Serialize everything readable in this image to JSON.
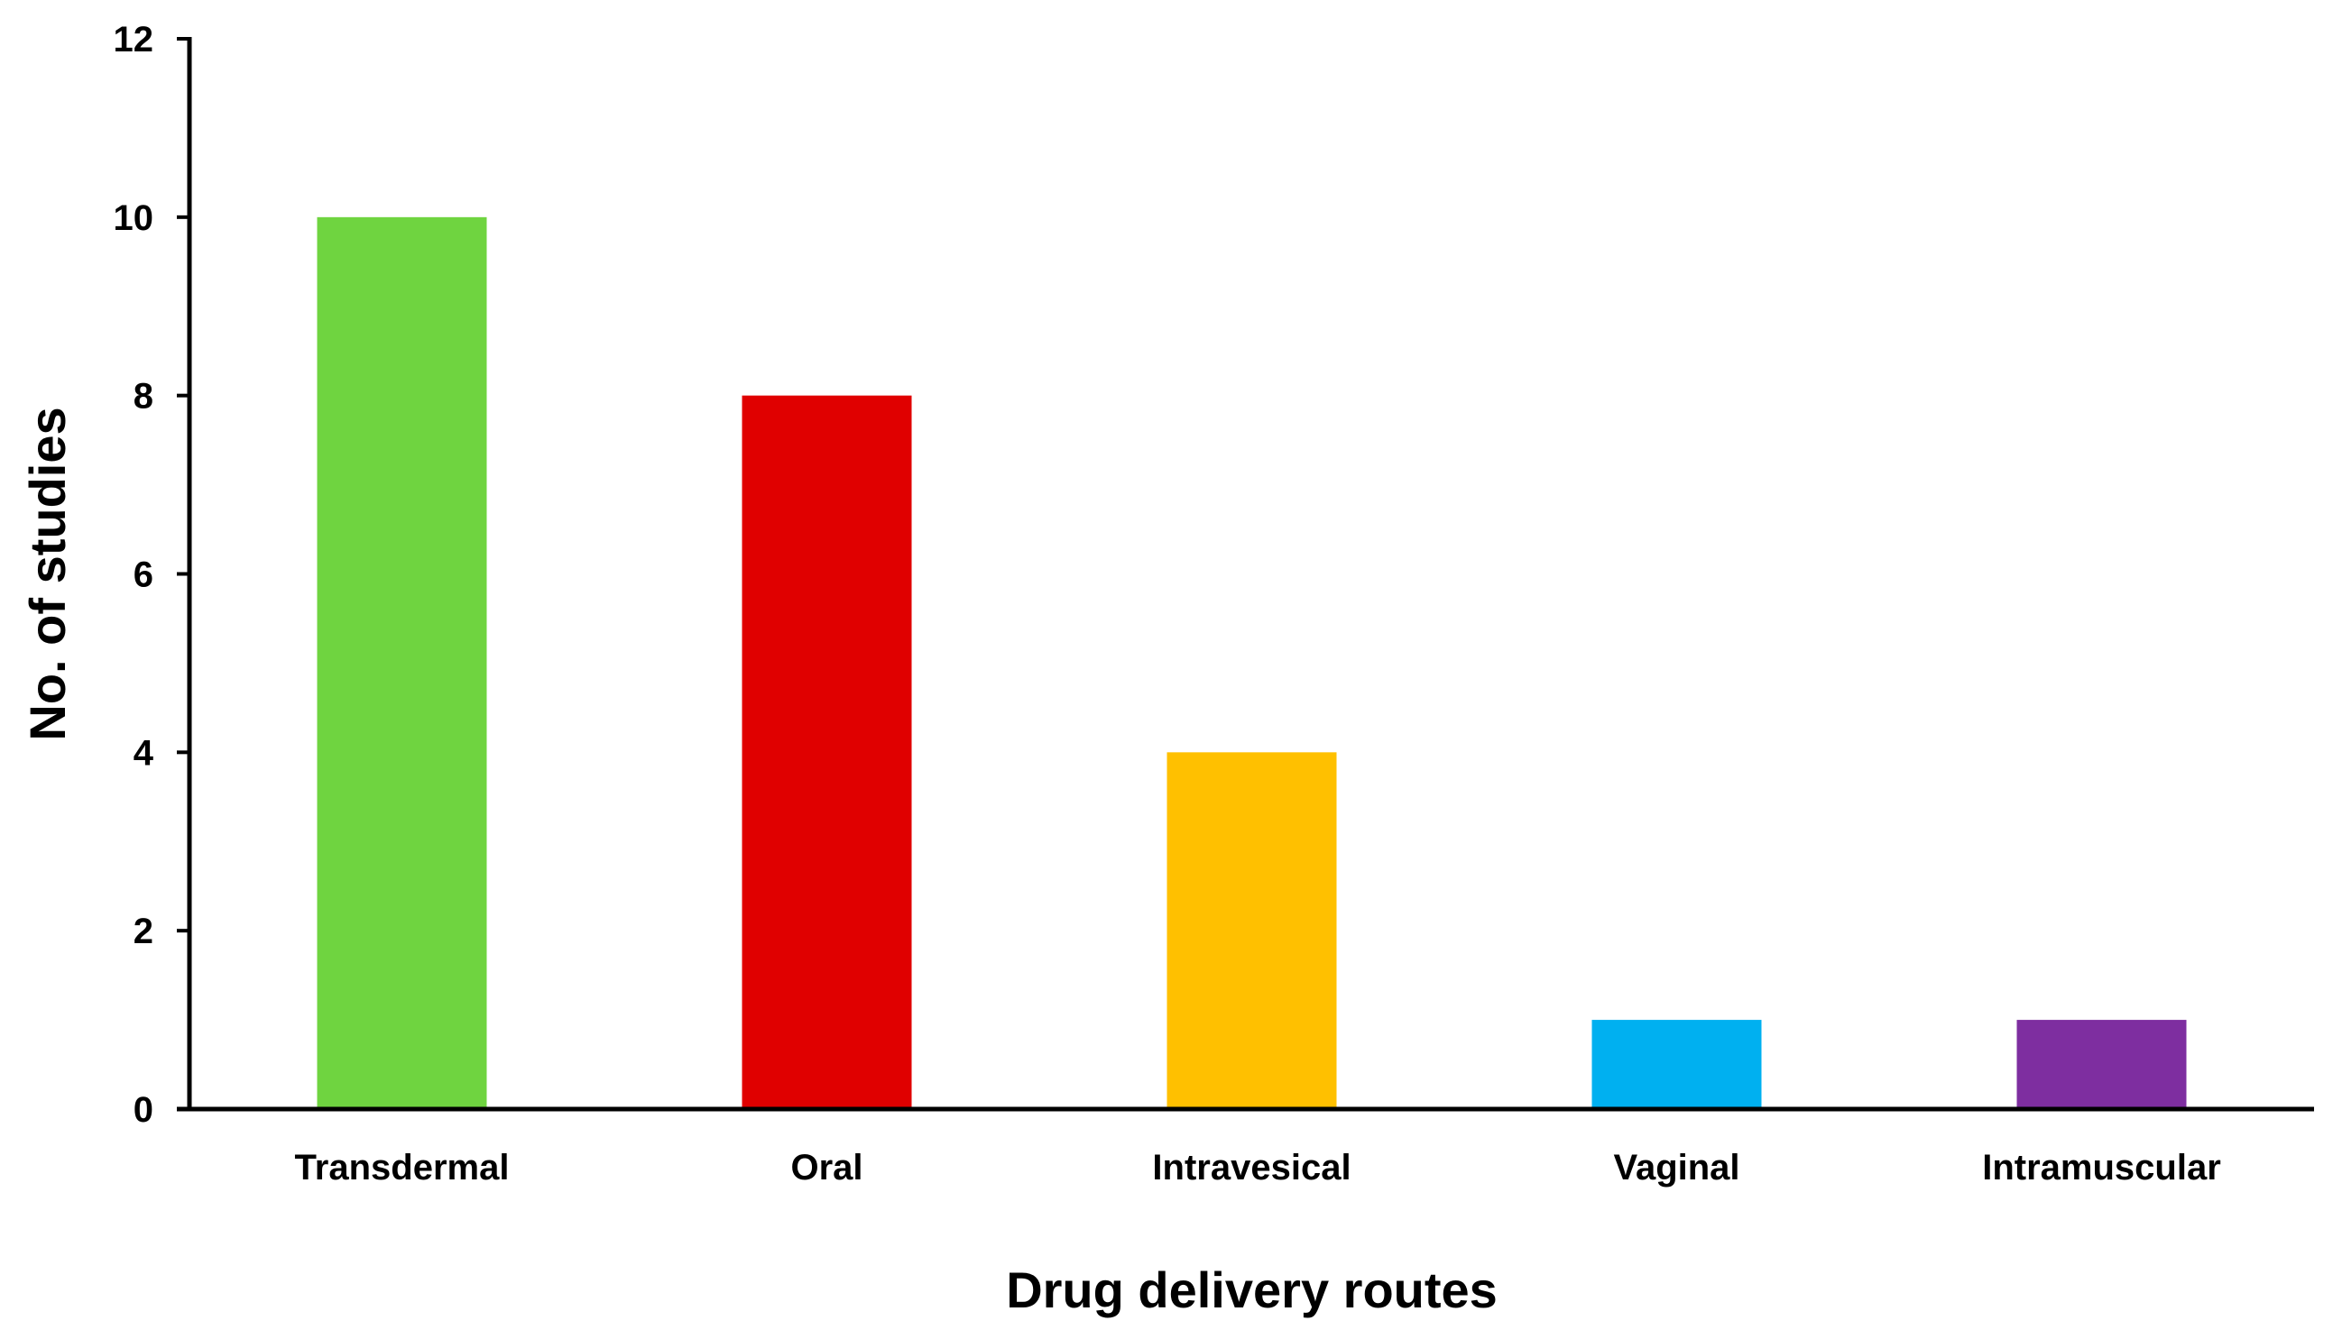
{
  "chart_data": {
    "type": "bar",
    "title": "",
    "xlabel": "Drug delivery routes",
    "ylabel": "No. of studies",
    "categories": [
      "Transdermal",
      "Oral",
      "Intravesical",
      "Vaginal",
      "Intramuscular"
    ],
    "values": [
      10,
      8,
      4,
      1,
      1
    ],
    "colors": [
      "#6fd440",
      "#e00000",
      "#ffc000",
      "#00b0f0",
      "#7e2ea0"
    ],
    "ylim": [
      0,
      12
    ],
    "yticks": [
      "0",
      "2",
      "4",
      "6",
      "8",
      "10",
      "12"
    ],
    "grid": false,
    "legend": "none",
    "axis_color": "#000000"
  }
}
